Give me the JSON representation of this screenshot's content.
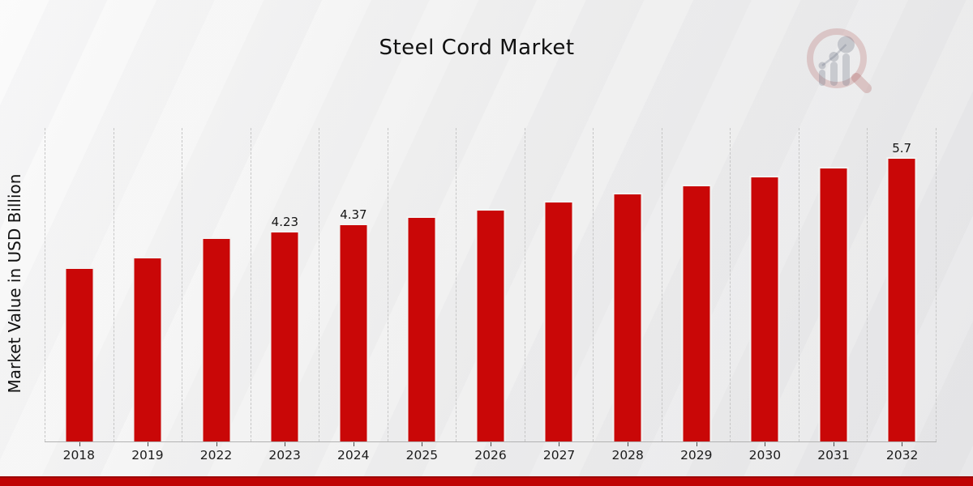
{
  "header": {
    "title": "Steel Cord Market",
    "logo_icon": "magnifier-bar-chart-watermark"
  },
  "colors": {
    "bar_fill": "#c90707",
    "footer_accent": "#bf0404",
    "gridline": "#c6c6c6",
    "background_light": "#fafafa",
    "background_dark": "#e4e4e6"
  },
  "chart_data": {
    "type": "bar",
    "title": "Steel Cord Market",
    "xlabel": "",
    "ylabel": "Market Value in USD Billion",
    "categories": [
      "2018",
      "2019",
      "2022",
      "2023",
      "2024",
      "2025",
      "2026",
      "2027",
      "2028",
      "2029",
      "2030",
      "2031",
      "2032"
    ],
    "values": [
      3.5,
      3.7,
      4.1,
      4.23,
      4.37,
      4.52,
      4.67,
      4.83,
      4.99,
      5.16,
      5.33,
      5.51,
      5.7
    ],
    "value_labels": [
      "",
      "",
      "",
      "4.23",
      "4.37",
      "",
      "",
      "",
      "",
      "",
      "",
      "",
      "5.7"
    ],
    "ylim": [
      0,
      6.3
    ],
    "grid": "vertical-dashed",
    "legend": "none",
    "units": "USD Billion"
  }
}
